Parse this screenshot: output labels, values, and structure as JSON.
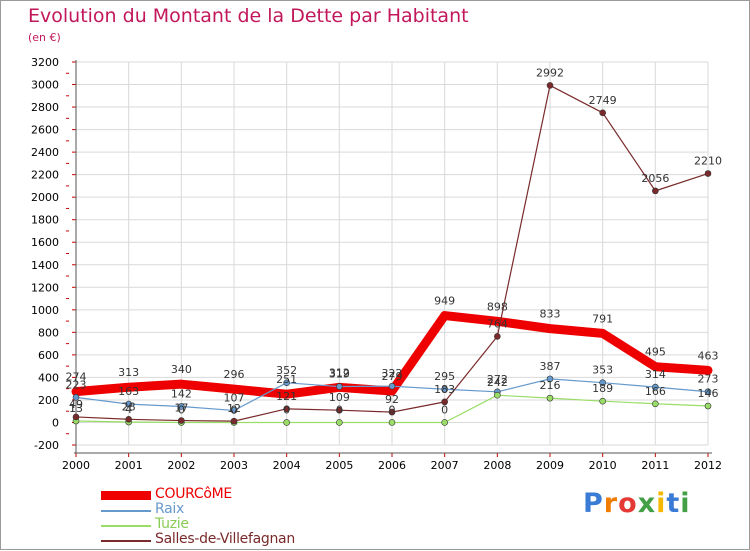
{
  "title": "Evolution du Montant de la Dette par Habitant",
  "unit": "(en €)",
  "logo": "Proxiti",
  "colors": {
    "title": "#c2185b",
    "grid_tick": "#cc0000",
    "axis": "#555555"
  },
  "chart_data": {
    "type": "line",
    "title": "Evolution du Montant de la Dette par Habitant",
    "ylabel": "(en €)",
    "xlabel": "",
    "ylim": [
      -200,
      3200
    ],
    "yticks": [
      -200,
      0,
      200,
      400,
      600,
      800,
      1000,
      1200,
      1400,
      1600,
      1800,
      2000,
      2200,
      2400,
      2600,
      2800,
      3000,
      3200
    ],
    "categories": [
      "2000",
      "2001",
      "2002",
      "2003",
      "2004",
      "2005",
      "2006",
      "2007",
      "2008",
      "2009",
      "2010",
      "2011",
      "2012"
    ],
    "legend_position": "bottom-left",
    "series": [
      {
        "name": "COURCôME",
        "color": "#ee0000",
        "values": [
          274,
          313,
          340,
          296,
          251,
          312,
          279,
          949,
          898,
          833,
          791,
          495,
          463
        ]
      },
      {
        "name": "Raix",
        "color": "#6699cc",
        "values": [
          223,
          163,
          142,
          107,
          352,
          319,
          322,
          295,
          272,
          387,
          353,
          314,
          273
        ]
      },
      {
        "name": "Tuzie",
        "color": "#99dd66",
        "values": [
          13,
          4,
          0,
          0,
          0,
          0,
          0,
          0,
          242,
          216,
          189,
          166,
          146
        ]
      },
      {
        "name": "Salles-de-Villefagnan",
        "color": "#7a2a2a",
        "values": [
          49,
          28,
          17,
          12,
          121,
          109,
          92,
          183,
          764,
          2992,
          2749,
          2056,
          2210
        ]
      }
    ]
  }
}
